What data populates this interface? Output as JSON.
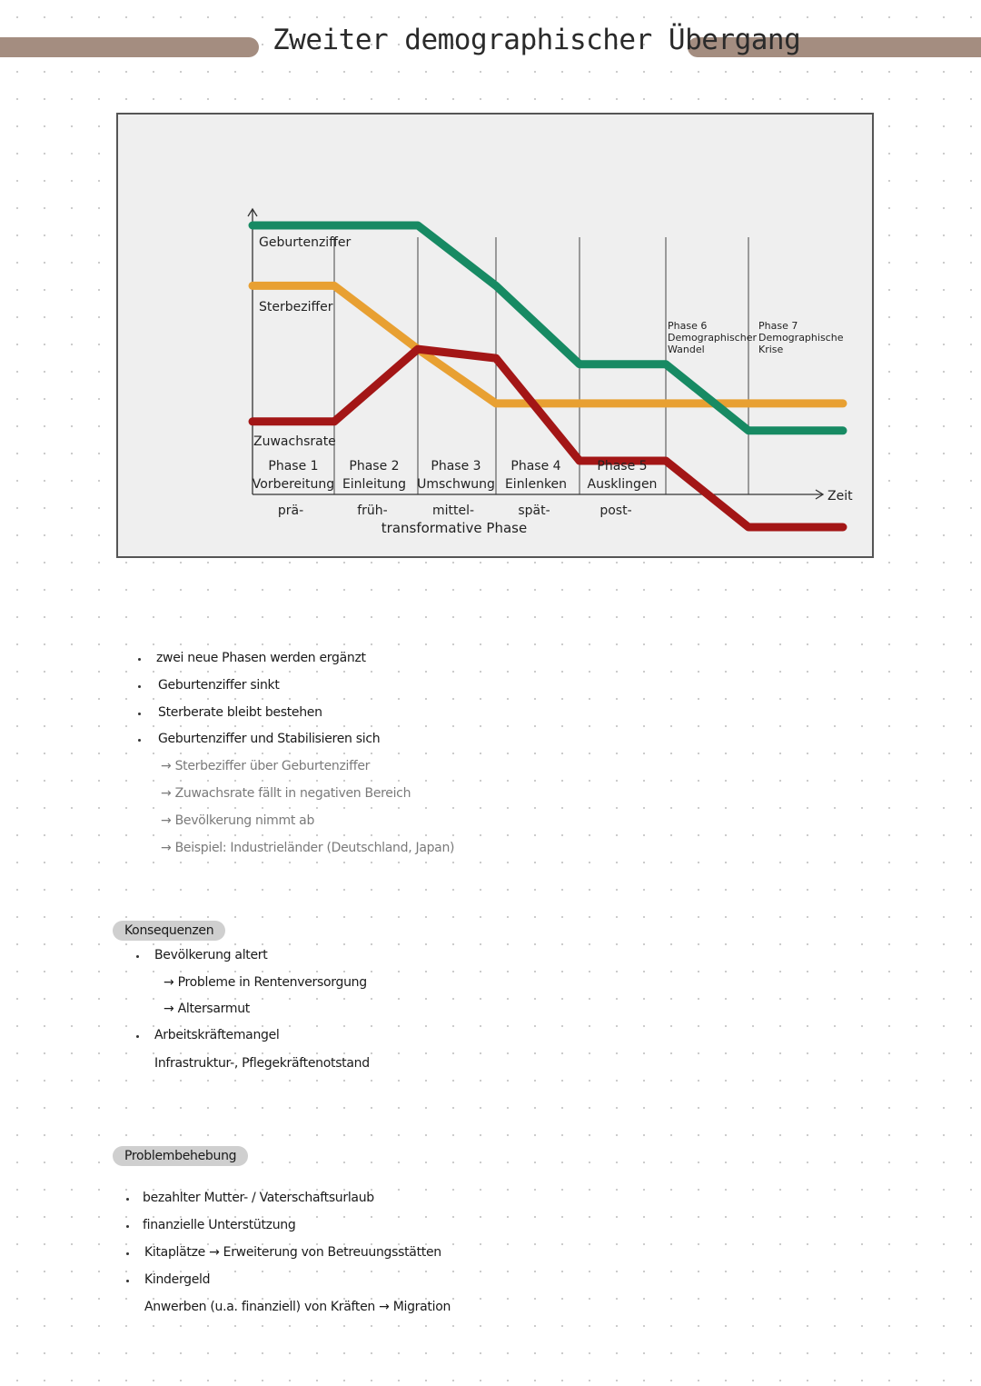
{
  "page": {
    "title": "Zweiter demographischer Übergang"
  },
  "chart_data": {
    "type": "line",
    "x": [
      0,
      1,
      2,
      3,
      4,
      5,
      6,
      7
    ],
    "xlabel": "Zeit",
    "series": [
      {
        "name": "Geburtenziffer",
        "color": "#178a63",
        "values": [
          10,
          10,
          10,
          8,
          5.4,
          5.4,
          3.2,
          3.2
        ]
      },
      {
        "name": "Sterbeziffer",
        "color": "#e8a032",
        "values": [
          8,
          8,
          5.9,
          4.1,
          4.1,
          4.1,
          4.1,
          4.1
        ]
      },
      {
        "name": "Zuwachsrate",
        "color": "#a31616",
        "values": [
          3.5,
          3.5,
          5.9,
          5.6,
          2.2,
          2.2,
          0,
          0
        ]
      }
    ],
    "phases": [
      {
        "label": "Phase 1",
        "name": "Vorbereitung"
      },
      {
        "label": "Phase 2",
        "name": "Einleitung"
      },
      {
        "label": "Phase 3",
        "name": "Umschwung"
      },
      {
        "label": "Phase 4",
        "name": "Einlenken"
      },
      {
        "label": "Phase 5",
        "name": "Ausklingen"
      },
      {
        "label": "Phase 6",
        "name": "Demographischer Wandel"
      },
      {
        "label": "Phase 7",
        "name": "Demographische Krise"
      }
    ],
    "stages": [
      "prä-",
      "früh-",
      "mittel-",
      "spät-",
      "post-"
    ],
    "stage_group": "transformative Phase"
  },
  "notes": {
    "items": [
      "zwei neue Phasen werden ergänzt",
      "Geburtenziffer sinkt",
      "Sterberate bleibt bestehen",
      "Geburtenziffer und Stabilisieren sich"
    ],
    "sub_items": [
      "→ Sterbeziffer über Geburtenziffer",
      "→ Zuwachsrate fällt in negativen Bereich",
      "→ Bevölkerung nimmt ab",
      "→ Beispiel: Industrieländer (Deutschland, Japan)"
    ]
  },
  "konsequenzen": {
    "heading": "Konsequenzen",
    "lines": [
      "Bevölkerung altert",
      "→ Probleme in Rentenversorgung",
      "→ Altersarmut",
      "Arbeitskräftemangel",
      "Infrastruktur-, Pflegekräftenotstand"
    ]
  },
  "problembehebung": {
    "heading": "Problembehebung",
    "lines": [
      "bezahlter Mutter- / Vaterschaftsurlaub",
      "finanzielle Unterstützung",
      "Kitaplätze → Erweiterung von Betreuungsstätten",
      "Kindergeld",
      "Anwerben (u.a. finanziell) von Kräften → Migration"
    ]
  }
}
